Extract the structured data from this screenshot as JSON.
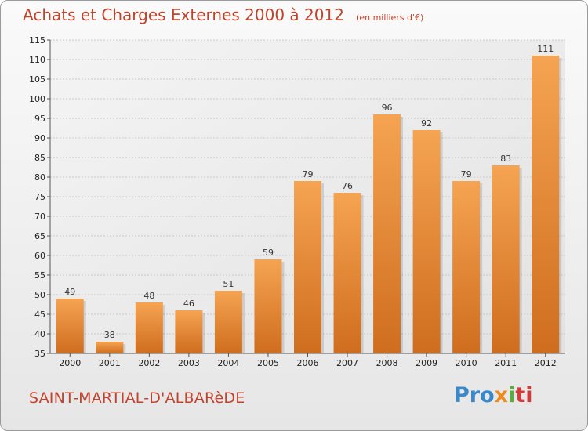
{
  "header": {
    "title": "Achats et Charges Externes 2000 à 2012",
    "subtitle": "(en milliers d'€)"
  },
  "footer": {
    "town": "SAINT-MARTIAL-D'ALBARèDE",
    "logo_parts": [
      "Pro",
      "x",
      "i",
      "ti"
    ]
  },
  "colors": {
    "accent": "#c0432b",
    "bar_top": "#f5a452",
    "bar_bottom": "#cf6d1e"
  },
  "chart_data": {
    "type": "bar",
    "title": "Achats et Charges Externes 2000 à 2012",
    "subtitle": "(en milliers d'€)",
    "categories": [
      "2000",
      "2001",
      "2002",
      "2003",
      "2004",
      "2005",
      "2006",
      "2007",
      "2008",
      "2009",
      "2010",
      "2011",
      "2012"
    ],
    "values": [
      49,
      38,
      48,
      46,
      51,
      59,
      79,
      76,
      96,
      92,
      79,
      83,
      111
    ],
    "ylim": [
      35,
      115
    ],
    "yticks": [
      35,
      40,
      45,
      50,
      55,
      60,
      65,
      70,
      75,
      80,
      85,
      90,
      95,
      100,
      105,
      110,
      115
    ],
    "grid": true,
    "xlabel": "",
    "ylabel": ""
  }
}
